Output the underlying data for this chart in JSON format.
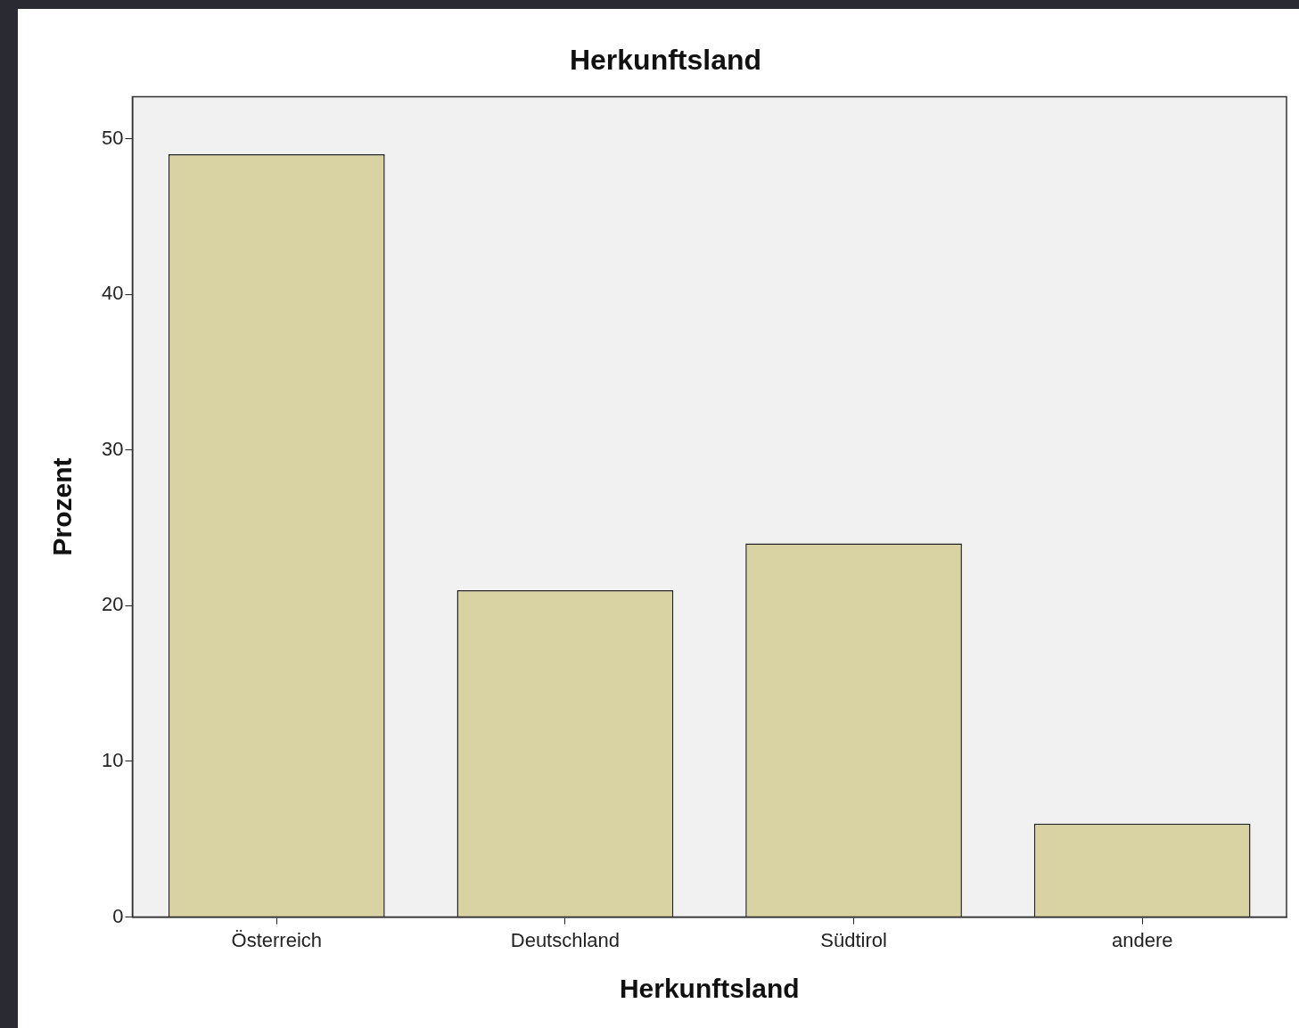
{
  "chart_data": {
    "type": "bar",
    "title": "Herkunftsland",
    "xlabel": "Herkunftsland",
    "ylabel": "Prozent",
    "categories": [
      "Österreich",
      "Deutschland",
      "Südtirol",
      "andere"
    ],
    "values": [
      49,
      21,
      24,
      6
    ],
    "color": "#d9d3a3",
    "ylim": [
      0,
      52.7
    ],
    "yticks": [
      0,
      10,
      20,
      30,
      40,
      50
    ]
  }
}
